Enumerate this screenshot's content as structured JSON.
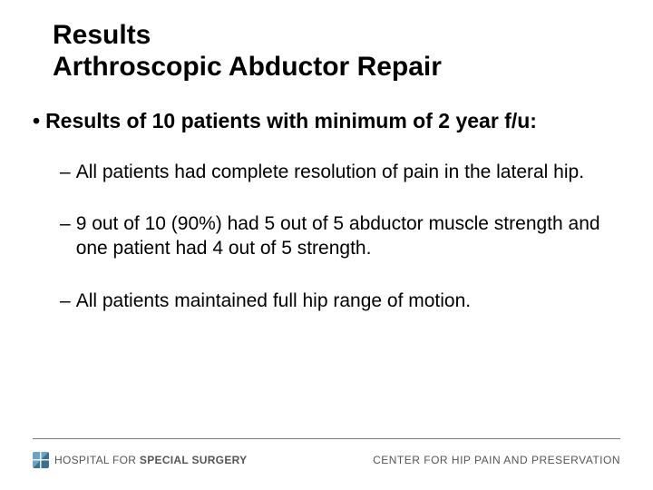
{
  "title": {
    "line1": "Results",
    "line2": "Arthroscopic Abductor Repair"
  },
  "main_bullet": {
    "marker": "•",
    "text": "Results of 10 patients with minimum of 2 year f/u:"
  },
  "sub_bullets": [
    {
      "marker": "–",
      "text": "All patients had complete resolution of pain in the lateral hip."
    },
    {
      "marker": "–",
      "text": "9 out of 10 (90%) had 5 out of 5 abductor muscle strength and one patient had 4 out of 5 strength."
    },
    {
      "marker": "–",
      "text": "All patients maintained full hip range of motion."
    }
  ],
  "footer": {
    "left_prefix": "HOSPITAL FOR ",
    "left_bold": "SPECIAL SURGERY",
    "right": "CENTER FOR HIP PAIN AND PRESERVATION"
  },
  "colors": {
    "text": "#000000",
    "footer_text": "#555555",
    "rule": "#7a7a7a",
    "logo_light": "#6aa3c4",
    "logo_dark": "#3f6f8e",
    "background": "#ffffff"
  },
  "fonts": {
    "title_size_pt": 22,
    "bullet_size_pt": 17,
    "sub_size_pt": 16,
    "footer_size_pt": 9,
    "family": "Arial"
  }
}
